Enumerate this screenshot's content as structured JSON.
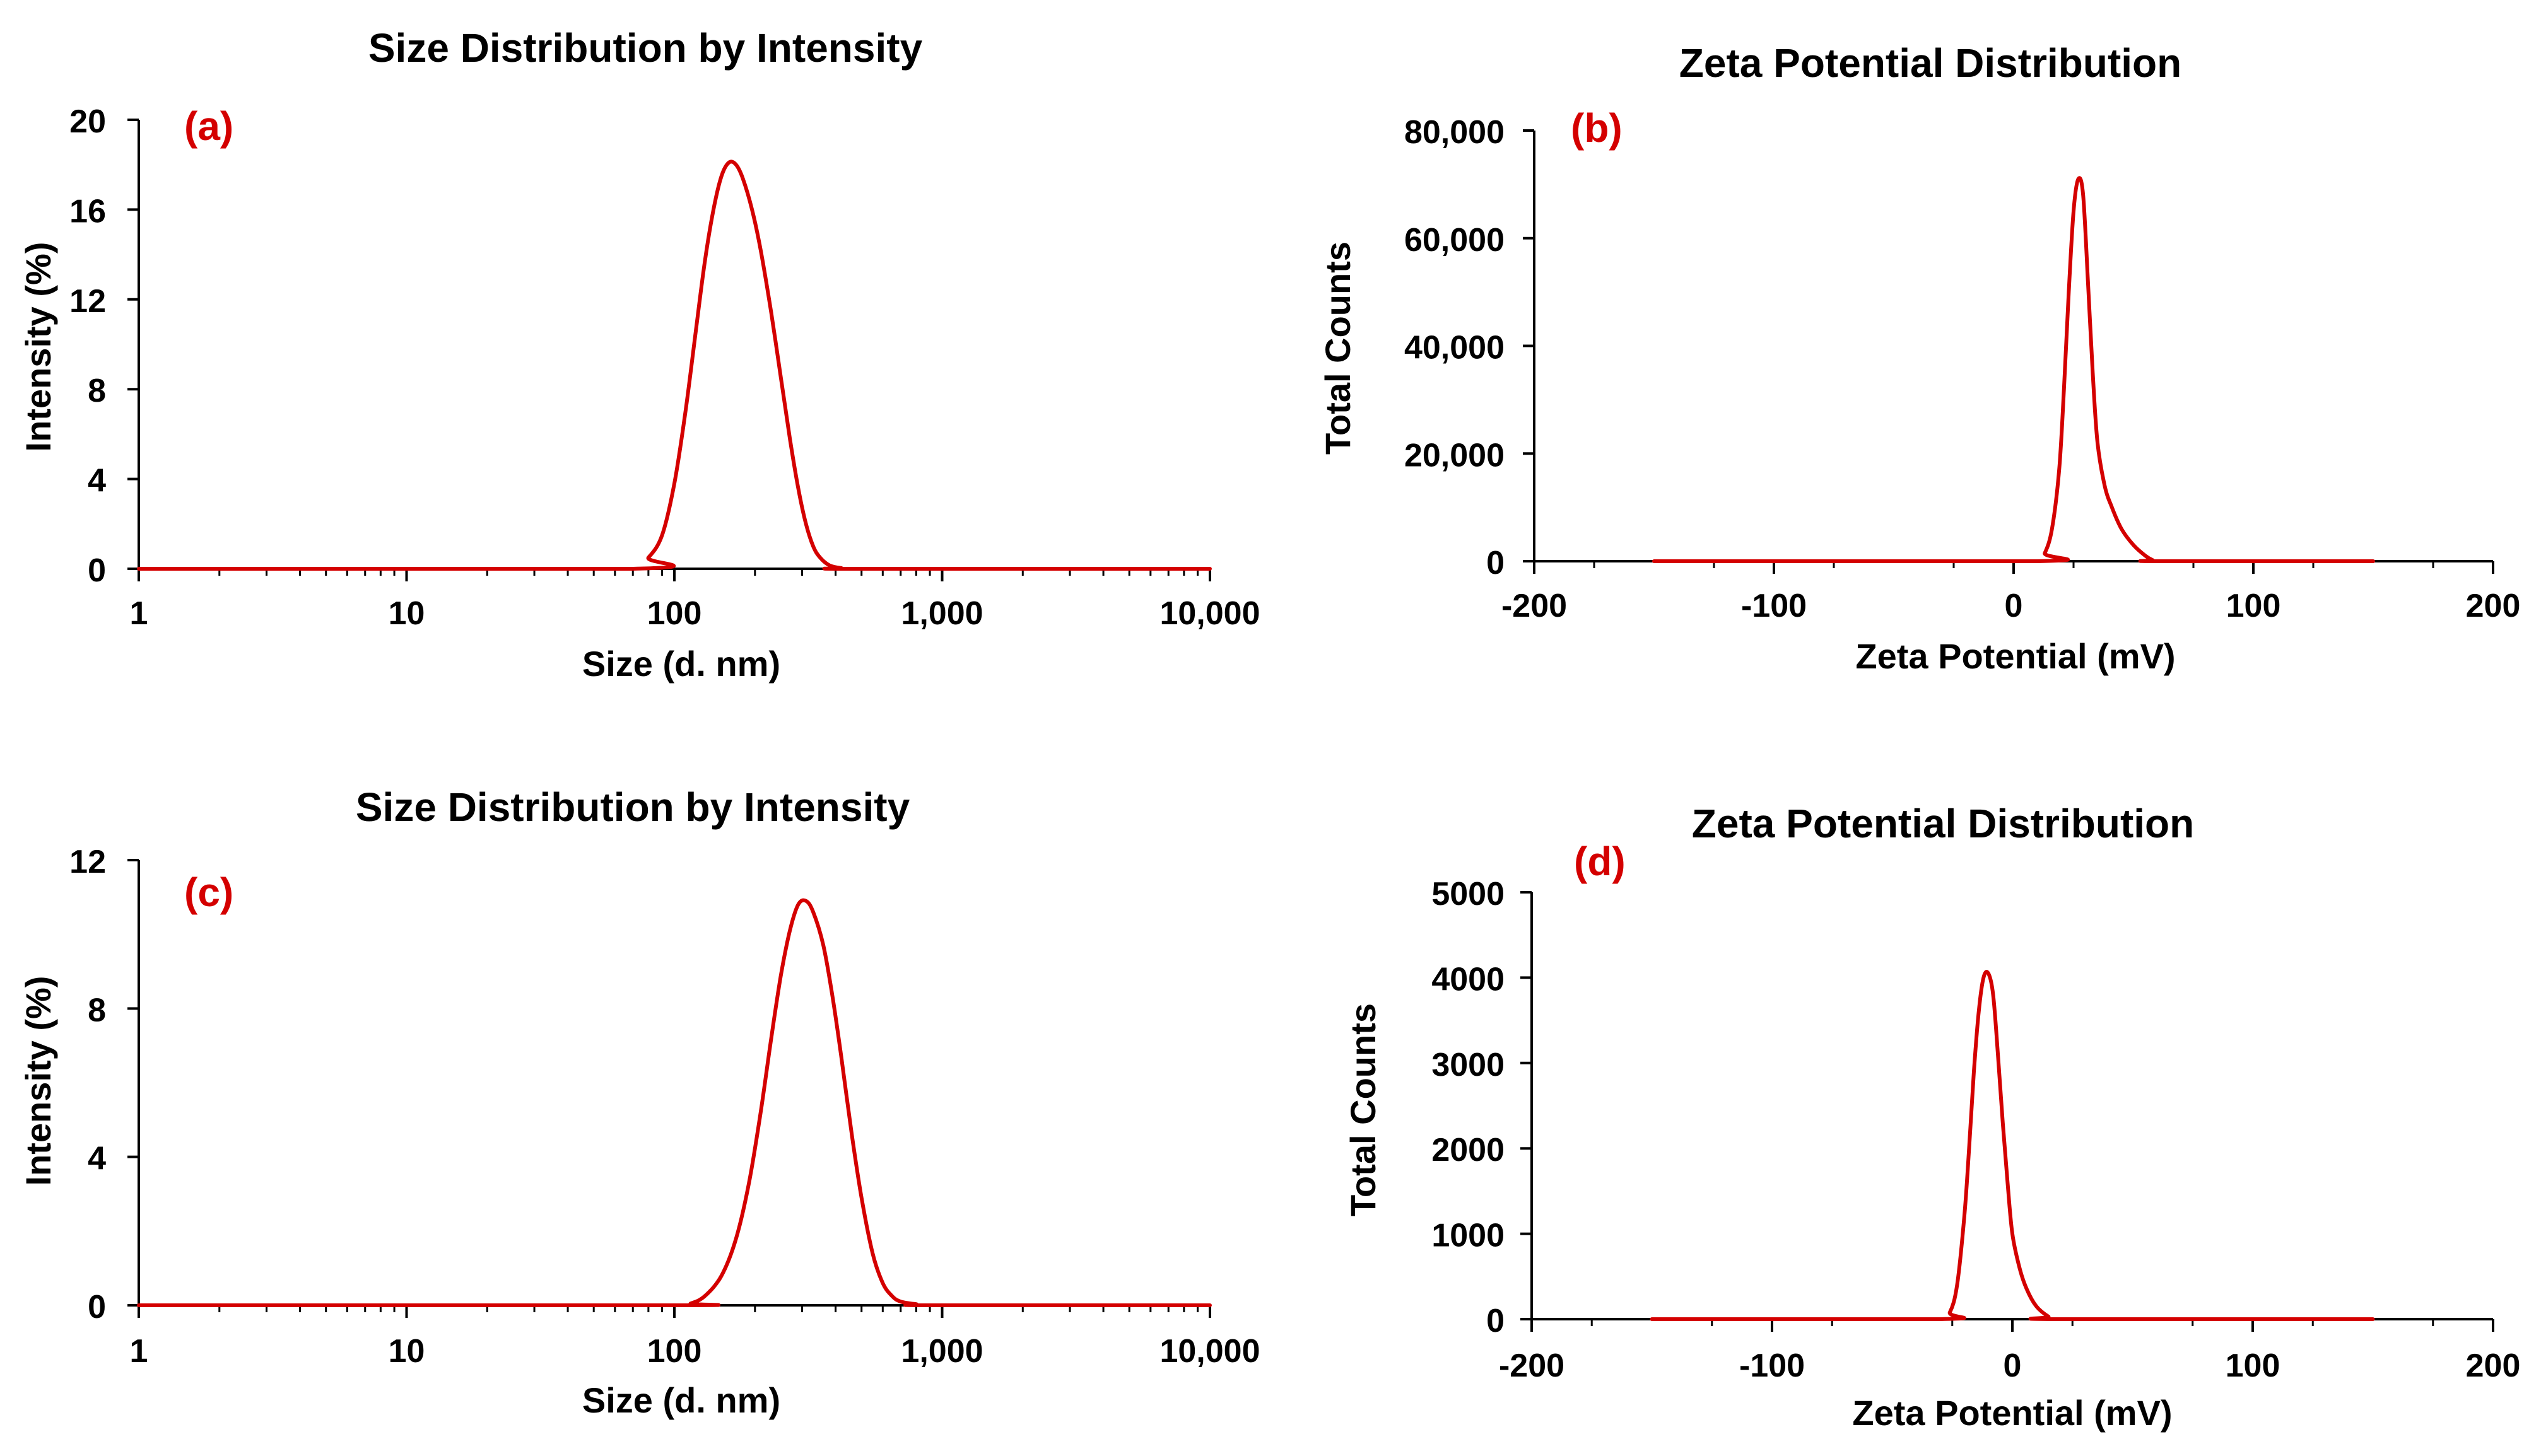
{
  "colors": {
    "series": "#d40000",
    "axis": "#000000",
    "panel_label": "#d40000"
  },
  "chart_data": [
    {
      "id": "a",
      "type": "line",
      "panel_label": "(a)",
      "title": "Size Distribution by Intensity",
      "xlabel": "Size (d. nm)",
      "ylabel": "Intensity (%)",
      "xscale": "log",
      "xlim": [
        1,
        10000
      ],
      "ylim": [
        0,
        20
      ],
      "xticks": [
        1,
        10,
        100,
        1000,
        10000
      ],
      "xtick_labels": [
        "1",
        "10",
        "100",
        "1,000",
        "10,000"
      ],
      "yticks": [
        0,
        4,
        8,
        12,
        16,
        20
      ],
      "ytick_labels": [
        "0",
        "4",
        "8",
        "12",
        "16",
        "20"
      ],
      "grid": false,
      "legend": "none",
      "series": [
        {
          "name": "Intensity",
          "x": [
            1,
            70,
            80,
            90,
            100,
            110,
            120,
            130,
            140,
            150,
            160,
            170,
            180,
            195,
            210,
            230,
            250,
            270,
            290,
            310,
            330,
            350,
            380,
            420,
            470,
            10000
          ],
          "y": [
            0,
            0,
            0.5,
            1.5,
            3.8,
            7.0,
            10.5,
            13.7,
            16.0,
            17.5,
            18.1,
            18.0,
            17.4,
            16.0,
            14.2,
            11.4,
            8.5,
            5.8,
            3.6,
            2.0,
            1.0,
            0.5,
            0.15,
            0.03,
            0,
            0
          ]
        }
      ]
    },
    {
      "id": "b",
      "type": "line",
      "panel_label": "(b)",
      "title": "Zeta Potential Distribution",
      "xlabel": "Zeta Potential (mV)",
      "ylabel": "Total Counts",
      "xlim": [
        -200,
        200
      ],
      "ylim": [
        0,
        80000
      ],
      "xticks": [
        -200,
        -100,
        0,
        100,
        200
      ],
      "xtick_labels": [
        "-200",
        "-100",
        "0",
        "100",
        "200"
      ],
      "yticks": [
        0,
        20000,
        40000,
        60000,
        80000
      ],
      "ytick_labels": [
        "0",
        "20,000",
        "40,000",
        "60,000",
        "80,000"
      ],
      "grid": false,
      "legend": "none",
      "series": [
        {
          "name": "Total Counts",
          "x": [
            -150,
            10,
            13,
            16,
            19,
            21,
            23,
            25,
            27,
            29,
            31,
            33,
            35,
            38,
            41,
            45,
            50,
            55,
            58,
            60,
            150
          ],
          "y": [
            0,
            0,
            1500,
            6000,
            17000,
            32000,
            50000,
            65000,
            71000,
            68000,
            52000,
            35000,
            22000,
            14000,
            10000,
            6000,
            3000,
            1000,
            200,
            0,
            0
          ]
        }
      ]
    },
    {
      "id": "c",
      "type": "line",
      "panel_label": "(c)",
      "title": "Size Distribution by Intensity",
      "xlabel": "Size (d. nm)",
      "ylabel": "Intensity (%)",
      "xscale": "log",
      "xlim": [
        1,
        10000
      ],
      "ylim": [
        0,
        12
      ],
      "xticks": [
        1,
        10,
        100,
        1000,
        10000
      ],
      "xtick_labels": [
        "1",
        "10",
        "100",
        "1,000",
        "10,000"
      ],
      "yticks": [
        0,
        4,
        8,
        12
      ],
      "ytick_labels": [
        "0",
        "4",
        "8",
        "12"
      ],
      "grid": false,
      "legend": "none",
      "series": [
        {
          "name": "Intensity",
          "x": [
            1,
            100,
            115,
            130,
            150,
            170,
            190,
            210,
            230,
            250,
            270,
            290,
            310,
            330,
            360,
            390,
            420,
            460,
            500,
            550,
            600,
            650,
            700,
            800,
            900,
            10000
          ],
          "y": [
            0,
            0,
            0.05,
            0.25,
            0.8,
            1.8,
            3.3,
            5.2,
            7.2,
            8.9,
            10.1,
            10.8,
            10.9,
            10.6,
            9.7,
            8.3,
            6.7,
            4.6,
            2.9,
            1.4,
            0.6,
            0.25,
            0.1,
            0.03,
            0,
            0
          ]
        }
      ]
    },
    {
      "id": "d",
      "type": "line",
      "panel_label": "(d)",
      "title": "Zeta Potential Distribution",
      "xlabel": "Zeta Potential (mV)",
      "ylabel": "Total Counts",
      "xlim": [
        -200,
        200
      ],
      "ylim": [
        0,
        5000
      ],
      "xticks": [
        -200,
        -100,
        0,
        100,
        200
      ],
      "xtick_labels": [
        "-200",
        "-100",
        "0",
        "100",
        "200"
      ],
      "yticks": [
        0,
        1000,
        2000,
        3000,
        4000,
        5000
      ],
      "ytick_labels": [
        "0",
        "1000",
        "2000",
        "3000",
        "4000",
        "5000"
      ],
      "grid": false,
      "legend": "none",
      "series": [
        {
          "name": "Total Counts",
          "x": [
            -150,
            -30,
            -26,
            -23,
            -20,
            -18,
            -16,
            -14,
            -12,
            -10,
            -8,
            -6,
            -4,
            -2,
            0,
            3,
            6,
            10,
            15,
            18,
            150
          ],
          "y": [
            0,
            0,
            80,
            400,
            1200,
            2000,
            2900,
            3600,
            4000,
            4050,
            3800,
            3100,
            2300,
            1600,
            1000,
            600,
            350,
            150,
            30,
            0,
            0
          ]
        }
      ]
    }
  ]
}
